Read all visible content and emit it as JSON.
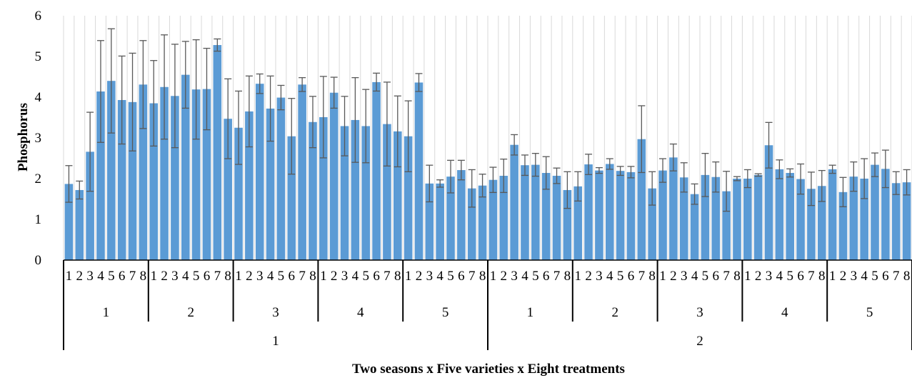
{
  "chart_data": {
    "type": "bar",
    "title": "",
    "xlabel": "Two seasons x Five varieties x Eight treatments",
    "ylabel": "Phosphorus",
    "ylim": [
      0,
      6
    ],
    "yticks": [
      "0",
      "1",
      "2",
      "3",
      "4",
      "5",
      "6"
    ],
    "grid": "vertical gridlines",
    "legend": "none",
    "colors": {
      "bar": "#5B9BD5",
      "error_bar": "#595959",
      "grid": "#D9D9D9",
      "axis": "#000000"
    },
    "levels": {
      "seasons": [
        "1",
        "2"
      ],
      "varieties": [
        "1",
        "2",
        "3",
        "4",
        "5"
      ],
      "treatments": [
        "1",
        "2",
        "3",
        "4",
        "5",
        "6",
        "7",
        "8"
      ]
    },
    "series": [
      {
        "values": [
          1.87,
          1.72,
          2.66,
          4.14,
          4.4,
          3.93,
          3.88,
          4.31,
          3.85,
          4.25,
          4.03,
          4.55,
          4.19,
          4.2,
          5.28,
          3.47,
          3.25,
          3.65,
          4.33,
          3.72,
          3.99,
          3.04,
          4.31,
          3.39,
          3.51,
          4.11,
          3.29,
          3.44,
          3.29,
          4.37,
          3.34,
          3.16,
          3.04,
          4.36,
          1.88,
          1.88,
          2.05,
          2.21,
          1.76,
          1.83,
          1.97,
          2.07,
          2.83,
          2.33,
          2.34,
          2.14,
          2.07,
          1.72,
          1.81,
          2.35,
          2.2,
          2.36,
          2.19,
          2.16,
          2.97,
          1.76,
          2.2,
          2.52,
          2.03,
          1.62,
          2.09,
          2.04,
          1.69,
          2.0,
          2.0,
          2.09,
          2.82,
          2.23,
          2.14,
          1.99,
          1.75,
          1.82,
          2.23,
          1.67,
          2.05,
          2.0,
          2.34,
          2.24,
          1.89,
          1.91
        ],
        "errors": [
          0.45,
          0.22,
          0.97,
          1.25,
          1.28,
          1.08,
          1.2,
          1.08,
          1.05,
          1.28,
          1.27,
          0.82,
          1.22,
          1.0,
          0.15,
          0.98,
          0.9,
          0.87,
          0.24,
          0.8,
          0.3,
          0.93,
          0.17,
          0.63,
          1.0,
          0.38,
          0.73,
          1.04,
          0.9,
          0.22,
          1.03,
          0.87,
          0.87,
          0.22,
          0.45,
          0.09,
          0.4,
          0.24,
          0.46,
          0.28,
          0.31,
          0.41,
          0.25,
          0.25,
          0.28,
          0.4,
          0.19,
          0.45,
          0.36,
          0.25,
          0.07,
          0.13,
          0.11,
          0.14,
          0.82,
          0.41,
          0.29,
          0.33,
          0.36,
          0.25,
          0.53,
          0.37,
          0.49,
          0.05,
          0.22,
          0.03,
          0.56,
          0.23,
          0.1,
          0.37,
          0.41,
          0.38,
          0.1,
          0.36,
          0.36,
          0.49,
          0.29,
          0.46,
          0.28,
          0.31
        ]
      }
    ]
  }
}
